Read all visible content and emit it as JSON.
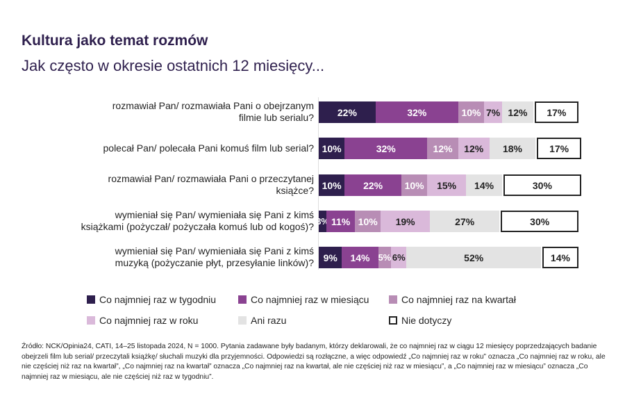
{
  "title": "Kultura jako temat rozmów",
  "subtitle": "Jak często w okresie ostatnich 12 miesięcy...",
  "chart_data": {
    "type": "bar",
    "stacked": true,
    "orientation": "horizontal",
    "categories": [
      "rozmawiał Pan/ rozmawiała Pani o obejrzanym filmie lub serialu?",
      "polecał Pan/ polecała Pani komuś film lub serial?",
      "rozmawiał Pan/ rozmawiała Pani o przeczytanej książce?",
      "wymieniał się Pan/ wymieniała się Pani z kimś książkami (pożyczał/ pożyczała komuś lub od kogoś)?",
      "wymieniał się Pan/ wymieniała się Pani z kimś muzyką (pożyczanie płyt, przesyłanie linków)?"
    ],
    "series": [
      {
        "name": "Co najmniej raz w tygodniu",
        "color": "#2e1f4d",
        "text": "#ffffff",
        "values": [
          22,
          10,
          10,
          3,
          9
        ]
      },
      {
        "name": "Co najmniej raz w miesiącu",
        "color": "#8a4291",
        "text": "#ffffff",
        "values": [
          32,
          32,
          22,
          11,
          14
        ]
      },
      {
        "name": "Co najmniej raz na kwartał",
        "color": "#b88db5",
        "text": "#ffffff",
        "values": [
          10,
          12,
          10,
          10,
          5
        ]
      },
      {
        "name": "Co najmniej raz w roku",
        "color": "#dab9da",
        "text": "#222222",
        "values": [
          7,
          12,
          15,
          19,
          6
        ]
      },
      {
        "name": "Ani razu",
        "color": "#e3e3e3",
        "text": "#222222",
        "values": [
          12,
          18,
          14,
          27,
          52
        ]
      },
      {
        "name": "Nie dotyczy",
        "color": "#ffffff",
        "text": "#222222",
        "values": [
          17,
          17,
          30,
          30,
          14
        ]
      }
    ],
    "unit": "%",
    "xlim": [
      0,
      100
    ]
  },
  "footnote": "Źródło: NCK/Opinia24, CATI, 14–25 listopada 2024, N = 1000. Pytania zadawane były badanym, którzy deklarowali, że co najmniej raz w ciągu 12 miesięcy poprzedzających badanie obejrzeli film lub serial/ przeczytali książkę/ słuchali muzyki dla przyjemności. Odpowiedzi są rozłączne, a więc odpowiedź „Co najmniej raz w roku” oznacza „Co najmniej raz w roku, ale nie częściej niż raz na kwartał”, „Co najmniej raz na kwartał” oznacza „Co najmniej raz na kwartał, ale nie częściej niż raz w miesiącu”, a „Co najmniej raz w miesiącu” oznacza „Co najmniej raz w miesiącu, ale nie częściej niż raz w tygodniu”."
}
